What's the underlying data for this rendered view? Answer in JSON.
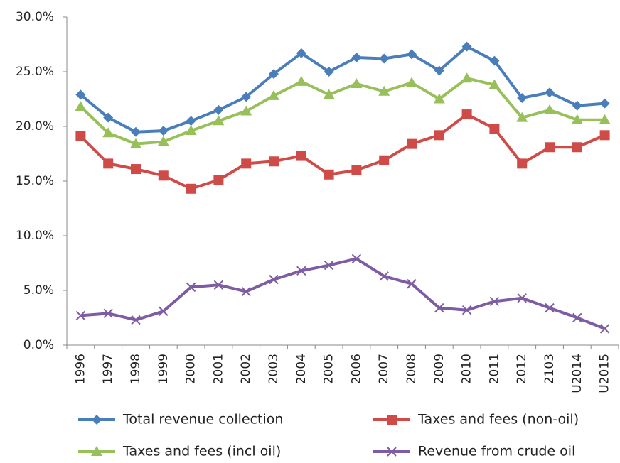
{
  "chart_data": {
    "type": "line",
    "categories": [
      "1996",
      "1997",
      "1998",
      "1999",
      "2000",
      "2001",
      "2002",
      "2003",
      "2004",
      "2005",
      "2006",
      "2007",
      "2008",
      "2009",
      "2010",
      "2011",
      "2012",
      "2103",
      "U2014",
      "U2015"
    ],
    "series": [
      {
        "name": "Total revenue collection",
        "color": "#4a7ebb",
        "marker": "diamond",
        "values": [
          22.9,
          20.8,
          19.5,
          19.6,
          20.5,
          21.5,
          22.7,
          24.8,
          26.7,
          25.0,
          26.3,
          26.2,
          26.6,
          25.1,
          27.3,
          26.0,
          22.6,
          23.1,
          21.9,
          22.1
        ]
      },
      {
        "name": "Taxes and fees (non-oil)",
        "color": "#cf4b48",
        "marker": "square",
        "values": [
          19.1,
          16.6,
          16.1,
          15.5,
          14.3,
          15.1,
          16.6,
          16.8,
          17.3,
          15.6,
          16.0,
          16.9,
          18.4,
          19.2,
          21.1,
          19.8,
          16.6,
          18.1,
          18.1,
          19.2
        ]
      },
      {
        "name": "Taxes and fees (incl oil)",
        "color": "#98c05a",
        "marker": "triangle",
        "values": [
          21.8,
          19.4,
          18.4,
          18.6,
          19.6,
          20.5,
          21.4,
          22.8,
          24.1,
          22.9,
          23.9,
          23.2,
          24.0,
          22.5,
          24.4,
          23.8,
          20.8,
          21.5,
          20.6,
          20.6
        ]
      },
      {
        "name": "Revenue from crude oil",
        "color": "#7d5ca3",
        "marker": "x",
        "values": [
          2.7,
          2.9,
          2.3,
          3.1,
          5.3,
          5.5,
          4.9,
          6.0,
          6.8,
          7.3,
          7.9,
          6.3,
          5.6,
          3.4,
          3.2,
          4.0,
          4.3,
          3.4,
          2.5,
          1.5
        ]
      }
    ],
    "ylim": [
      0,
      30
    ],
    "yticks": [
      {
        "value": 0,
        "label": "0.0%"
      },
      {
        "value": 5,
        "label": "5.0%"
      },
      {
        "value": 10,
        "label": "10.0%"
      },
      {
        "value": 15,
        "label": "15.0%"
      },
      {
        "value": 20,
        "label": "20.0%"
      },
      {
        "value": 25,
        "label": "25.0%"
      },
      {
        "value": 30,
        "label": "30.0%"
      }
    ],
    "grid": false,
    "legend": "bottom"
  }
}
